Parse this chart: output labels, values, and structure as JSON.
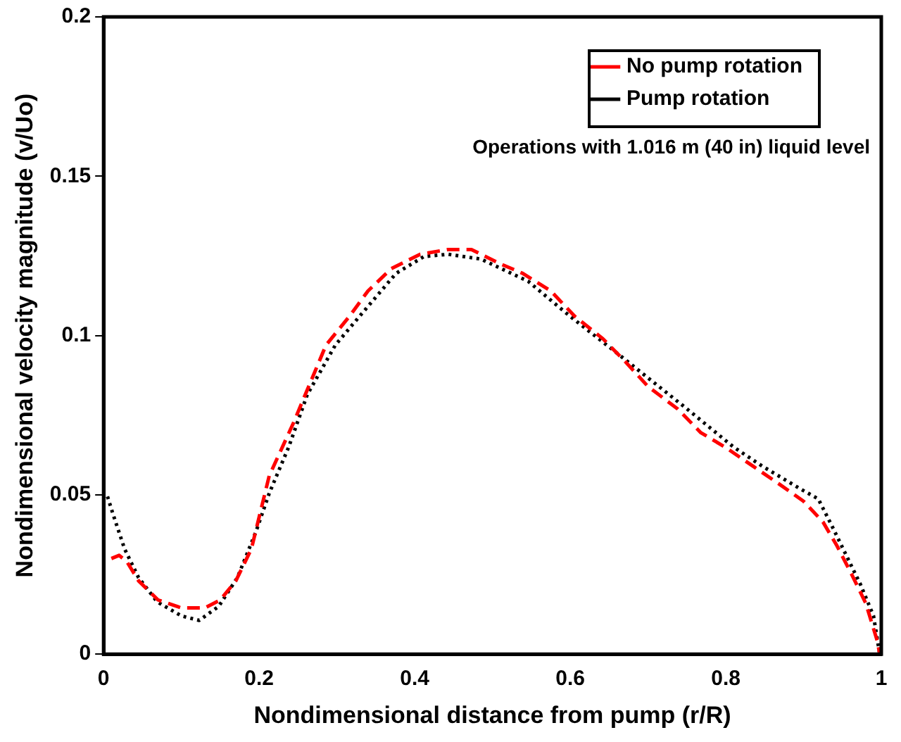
{
  "chart_data": {
    "type": "line",
    "xlabel": "Nondimensional distance from pump (r/R)",
    "ylabel": "Nondimensional velocity magnitude (v/Uo)",
    "annotations": [
      "Operations with 1.016 m (40 in) liquid level"
    ],
    "xlim": [
      0,
      1
    ],
    "ylim": [
      0,
      0.2
    ],
    "xticks": [
      0,
      0.2,
      0.4,
      0.6,
      0.8,
      1
    ],
    "yticks": [
      0,
      0.05,
      0.1,
      0.15,
      0.2
    ],
    "grid": false,
    "legend": "top right",
    "marker": "none",
    "series": [
      {
        "name": "No pump rotation",
        "color": "#ff0000",
        "line_style": "dashed",
        "x": [
          0.01,
          0.02,
          0.03,
          0.045,
          0.07,
          0.1,
          0.13,
          0.15,
          0.17,
          0.19,
          0.213,
          0.244,
          0.262,
          0.286,
          0.316,
          0.34,
          0.37,
          0.407,
          0.443,
          0.473,
          0.51,
          0.539,
          0.575,
          0.606,
          0.642,
          0.672,
          0.7,
          0.738,
          0.768,
          0.799,
          0.835,
          0.871,
          0.9,
          0.925,
          0.943,
          0.962,
          0.98,
          0.995,
          0.998
        ],
        "values": [
          0.03,
          0.031,
          0.029,
          0.023,
          0.017,
          0.0145,
          0.0145,
          0.017,
          0.023,
          0.033,
          0.056,
          0.0725,
          0.083,
          0.097,
          0.106,
          0.114,
          0.121,
          0.1255,
          0.127,
          0.127,
          0.1225,
          0.1195,
          0.114,
          0.106,
          0.099,
          0.0915,
          0.084,
          0.077,
          0.0695,
          0.065,
          0.059,
          0.053,
          0.048,
          0.0415,
          0.034,
          0.025,
          0.016,
          0.004,
          0
        ]
      },
      {
        "name": "Pump rotation",
        "color": "#000000",
        "line_style": "dotted",
        "x": [
          0.005,
          0.012,
          0.027,
          0.045,
          0.069,
          0.1,
          0.123,
          0.148,
          0.172,
          0.196,
          0.213,
          0.238,
          0.262,
          0.298,
          0.329,
          0.376,
          0.412,
          0.443,
          0.485,
          0.546,
          0.6,
          0.66,
          0.714,
          0.75,
          0.81,
          0.847,
          0.895,
          0.919,
          0.937,
          0.955,
          0.973,
          0.99,
          0.998
        ],
        "values": [
          0.0495,
          0.044,
          0.033,
          0.024,
          0.0164,
          0.012,
          0.0106,
          0.015,
          0.024,
          0.0385,
          0.0505,
          0.065,
          0.0815,
          0.097,
          0.106,
          0.1195,
          0.1248,
          0.1255,
          0.124,
          0.117,
          0.106,
          0.0945,
          0.084,
          0.077,
          0.065,
          0.059,
          0.052,
          0.0487,
          0.04,
          0.031,
          0.022,
          0.012,
          0
        ]
      }
    ]
  }
}
